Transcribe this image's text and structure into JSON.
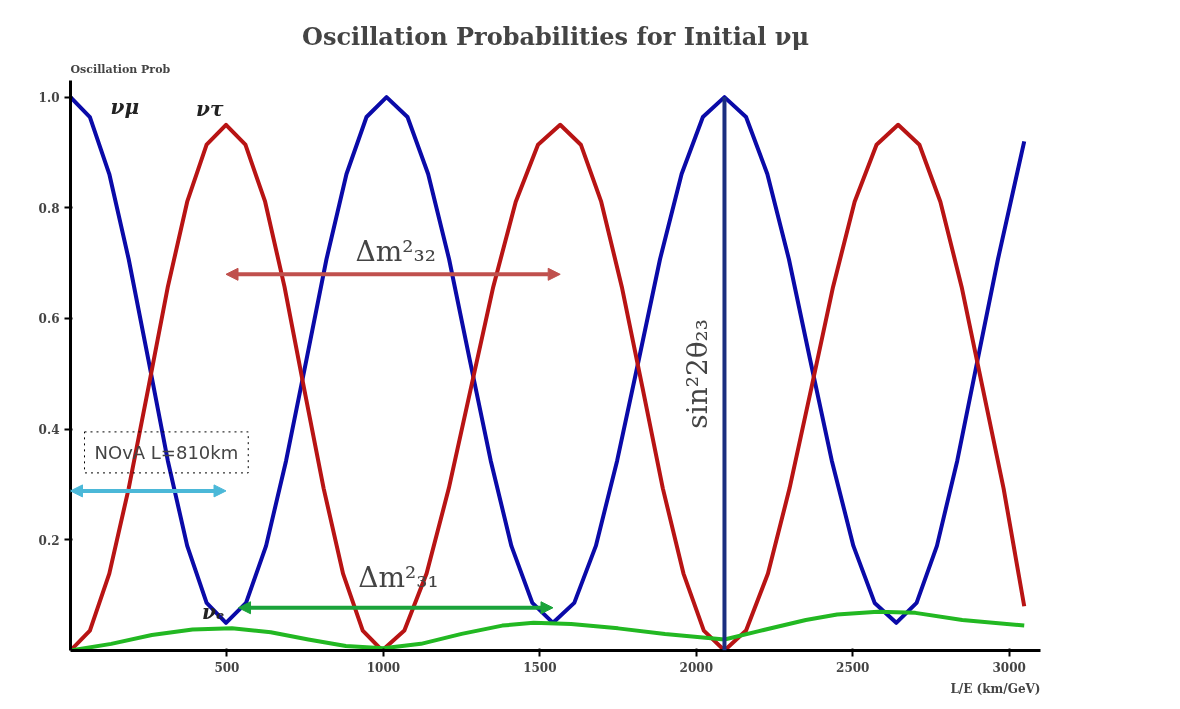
{
  "chart_data": {
    "type": "line",
    "title": "Oscillation Probabilities for Initial νμ",
    "xlabel": "L/E (km/GeV)",
    "ylabel": "Oscillation Prob",
    "xlim": [
      0,
      3100
    ],
    "ylim": [
      0,
      1.03
    ],
    "xticks": [
      500,
      1000,
      1500,
      2000,
      2500,
      3000
    ],
    "yticks": [
      0.2,
      0.4,
      0.6,
      0.8,
      {
        "value": 1,
        "label": "1.0"
      }
    ],
    "grid": false,
    "marker": "none",
    "line_style": "solid",
    "series": [
      {
        "name": "νμ",
        "color": "#0a0aa8",
        "x": [
          0,
          62,
          124,
          186,
          249,
          311,
          373,
          435,
          497,
          561,
          625,
          689,
          754,
          818,
          882,
          946,
          1010,
          1077,
          1143,
          1210,
          1276,
          1343,
          1409,
          1476,
          1542,
          1610,
          1679,
          1747,
          1816,
          1884,
          1953,
          2021,
          2090,
          2159,
          2227,
          2296,
          2364,
          2433,
          2502,
          2570,
          2639,
          2704,
          2769,
          2834,
          2899,
          2964,
          3048
        ],
        "values": [
          1.0,
          0.964,
          0.861,
          0.707,
          0.525,
          0.343,
          0.189,
          0.086,
          0.05,
          0.086,
          0.189,
          0.343,
          0.525,
          0.707,
          0.861,
          0.964,
          1.0,
          0.964,
          0.861,
          0.707,
          0.525,
          0.343,
          0.189,
          0.086,
          0.05,
          0.086,
          0.189,
          0.343,
          0.525,
          0.707,
          0.861,
          0.964,
          1.0,
          0.964,
          0.861,
          0.707,
          0.525,
          0.343,
          0.189,
          0.086,
          0.05,
          0.086,
          0.189,
          0.343,
          0.525,
          0.707,
          0.92
        ]
      },
      {
        "name": "ντ",
        "color": "#b81414",
        "x": [
          0,
          62,
          124,
          186,
          249,
          311,
          373,
          435,
          497,
          559,
          622,
          684,
          746,
          809,
          871,
          934,
          996,
          1067,
          1138,
          1209,
          1280,
          1351,
          1423,
          1494,
          1565,
          1631,
          1696,
          1762,
          1828,
          1893,
          1959,
          2024,
          2090,
          2159,
          2229,
          2298,
          2368,
          2437,
          2506,
          2576,
          2645,
          2713,
          2780,
          2848,
          2915,
          2982,
          3048
        ],
        "values": [
          0,
          0.036,
          0.139,
          0.293,
          0.475,
          0.657,
          0.811,
          0.914,
          0.95,
          0.914,
          0.811,
          0.657,
          0.475,
          0.293,
          0.139,
          0.036,
          0,
          0.036,
          0.139,
          0.293,
          0.475,
          0.657,
          0.811,
          0.914,
          0.95,
          0.914,
          0.811,
          0.657,
          0.475,
          0.293,
          0.139,
          0.036,
          0,
          0.036,
          0.139,
          0.293,
          0.475,
          0.657,
          0.811,
          0.914,
          0.95,
          0.914,
          0.811,
          0.657,
          0.475,
          0.293,
          0.08
        ]
      },
      {
        "name": "νₑ",
        "color": "#22b822",
        "x": [
          0,
          130,
          260,
          390,
          516,
          640,
          760,
          880,
          1000,
          1120,
          1250,
          1380,
          1480,
          1600,
          1750,
          1900,
          2090,
          2200,
          2350,
          2450,
          2580,
          2700,
          2850,
          3048
        ],
        "values": [
          0,
          0.012,
          0.028,
          0.038,
          0.04,
          0.033,
          0.02,
          0.008,
          0.004,
          0.012,
          0.03,
          0.045,
          0.05,
          0.048,
          0.04,
          0.03,
          0.02,
          0.035,
          0.055,
          0.065,
          0.07,
          0.068,
          0.055,
          0.045
        ]
      }
    ],
    "annotations": [
      "Δm²₃₂",
      "Δm²₃₁",
      "NOvA L=810km"
    ],
    "ref_lines": [
      {
        "axis": "x",
        "value": 2090,
        "label": "sin²2θ₂₃",
        "color": "#1a2e80"
      }
    ]
  }
}
